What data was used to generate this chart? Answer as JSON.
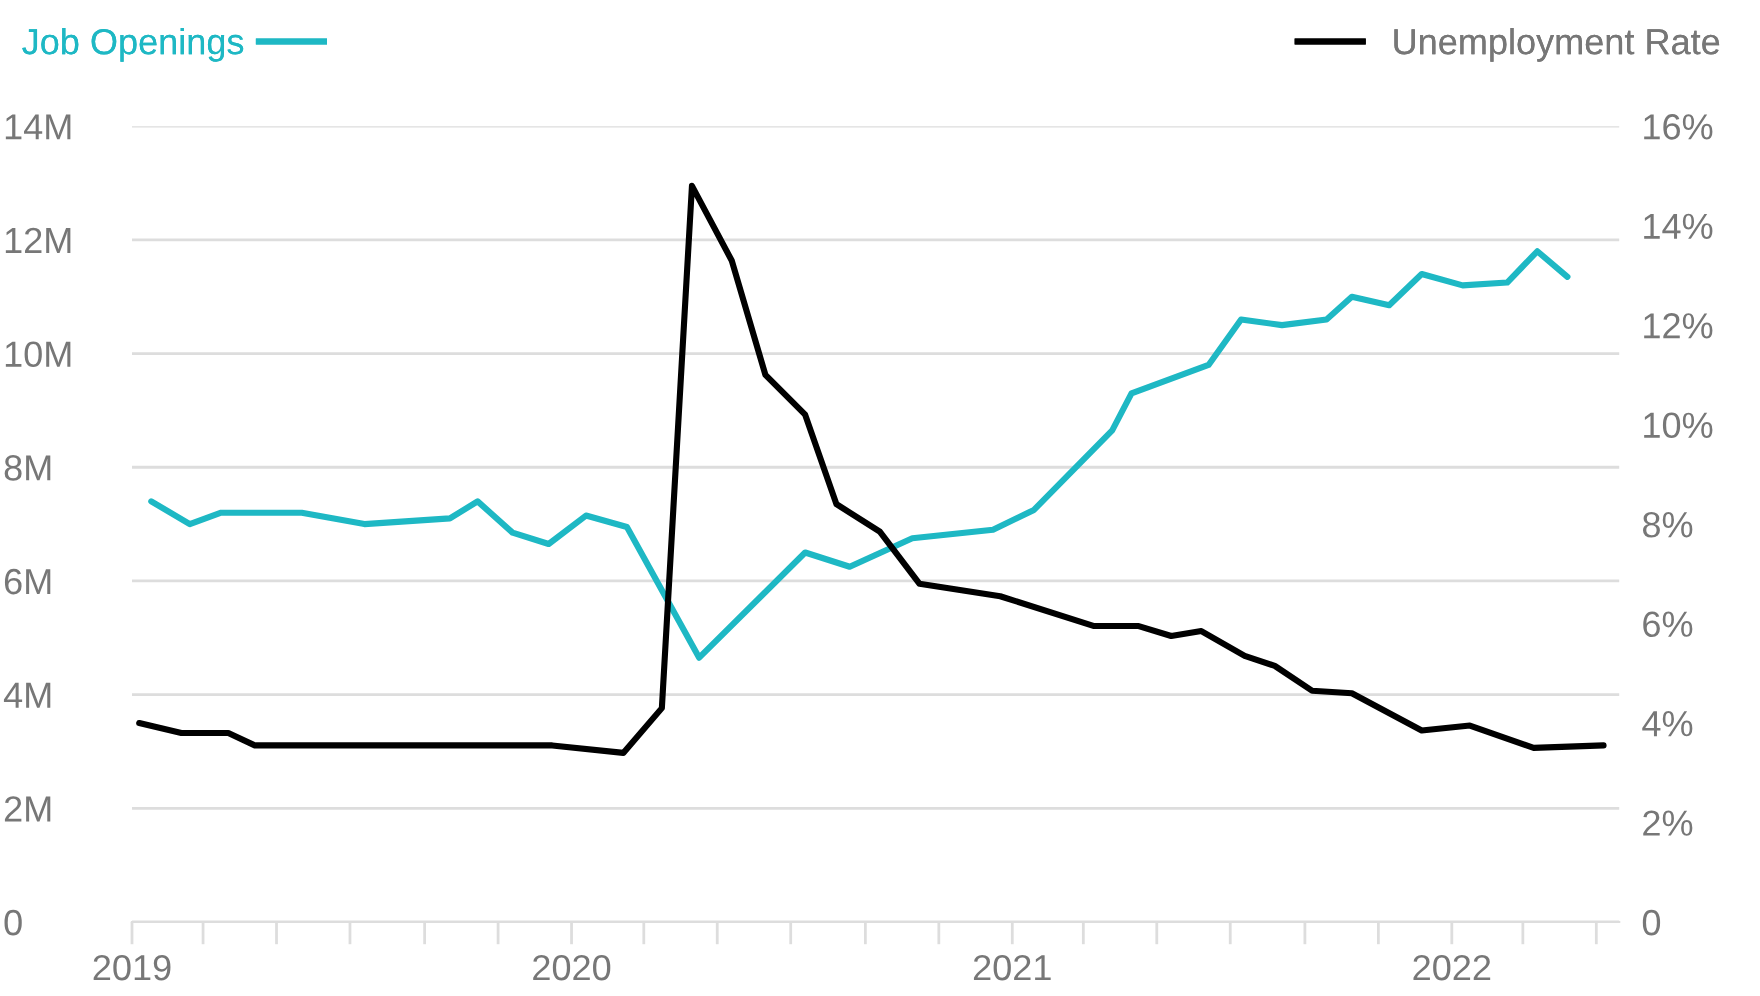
{
  "chart_data": {
    "type": "line",
    "legend": "top",
    "grid": "y",
    "marker": "none",
    "line_style": "solid",
    "xlim": [
      "2019-01-01",
      "2022-05-20"
    ],
    "xticks": [
      {
        "value": "2019-01-01",
        "label": "2019"
      },
      {
        "value": "2019-03-01",
        "label": null
      },
      {
        "value": "2019-05-01",
        "label": null
      },
      {
        "value": "2019-07-01",
        "label": null
      },
      {
        "value": "2019-09-01",
        "label": null
      },
      {
        "value": "2019-11-01",
        "label": null
      },
      {
        "value": "2020-01-01",
        "label": "2020"
      },
      {
        "value": "2020-03-01",
        "label": null
      },
      {
        "value": "2020-05-01",
        "label": null
      },
      {
        "value": "2020-07-01",
        "label": null
      },
      {
        "value": "2020-09-01",
        "label": null
      },
      {
        "value": "2020-11-01",
        "label": null
      },
      {
        "value": "2021-01-01",
        "label": "2021"
      },
      {
        "value": "2021-03-01",
        "label": null
      },
      {
        "value": "2021-05-01",
        "label": null
      },
      {
        "value": "2021-07-01",
        "label": null
      },
      {
        "value": "2021-09-01",
        "label": null
      },
      {
        "value": "2021-11-01",
        "label": null
      },
      {
        "value": "2022-01-01",
        "label": "2022"
      },
      {
        "value": "2022-03-01",
        "label": null
      },
      {
        "value": "2022-05-01",
        "label": null
      }
    ],
    "ylim": [
      0,
      14
    ],
    "yticks": [
      0,
      {
        "value": 2,
        "label": "2M"
      },
      {
        "value": 4,
        "label": "4M"
      },
      {
        "value": 6,
        "label": "6M"
      },
      {
        "value": 8,
        "label": "8M"
      },
      {
        "value": 10,
        "label": "10M"
      },
      {
        "value": 12,
        "label": "12M"
      },
      {
        "value": 14,
        "label": "14M"
      }
    ],
    "y2lim": [
      0,
      16
    ],
    "y2ticks": [
      0,
      {
        "value": 2,
        "label": "2%"
      },
      {
        "value": 4,
        "label": "4%"
      },
      {
        "value": 6,
        "label": "6%"
      },
      {
        "value": 8,
        "label": "8%"
      },
      {
        "value": 10,
        "label": "10%"
      },
      {
        "value": 12,
        "label": "12%"
      },
      {
        "value": 14,
        "label": "14%"
      },
      {
        "value": 16,
        "label": "16%"
      }
    ],
    "series": [
      {
        "name": "Job Openings",
        "color": "#1eb8c4",
        "x": [
          "2019-01-17",
          "2019-02-18",
          "2019-03-16",
          "2019-05-22",
          "2019-07-13",
          "2019-09-22",
          "2019-10-15",
          "2019-11-13",
          "2019-12-13",
          "2020-01-13",
          "2020-02-16",
          "2020-04-16",
          "2020-07-13",
          "2020-08-19",
          "2020-10-10",
          "2020-12-16",
          "2021-01-19",
          "2021-03-25",
          "2021-04-10",
          "2021-06-13",
          "2021-07-10",
          "2021-08-13",
          "2021-09-19",
          "2021-10-10",
          "2021-11-10",
          "2021-12-07",
          "2022-01-10",
          "2022-02-16",
          "2022-03-13",
          "2022-04-07"
        ],
        "values": [
          7.4,
          7.0,
          7.2,
          7.2,
          7.0,
          7.1,
          7.4,
          6.85,
          6.65,
          7.15,
          6.95,
          4.65,
          6.5,
          6.25,
          6.75,
          6.9,
          7.25,
          8.65,
          9.3,
          9.8,
          10.6,
          10.5,
          10.6,
          11.0,
          10.85,
          11.4,
          11.2,
          11.25,
          11.8,
          11.35
        ]
      },
      {
        "name": "Unemployment Rate",
        "color": "#000000",
        "axis": "y2",
        "x": [
          "2019-01-07",
          "2019-02-11",
          "2019-03-22",
          "2019-04-13",
          "2019-12-16",
          "2020-02-13",
          "2020-03-16",
          "2020-04-10",
          "2020-05-13",
          "2020-06-10",
          "2020-07-13",
          "2020-08-08",
          "2020-09-13",
          "2020-10-16",
          "2020-12-22",
          "2021-03-10",
          "2021-04-16",
          "2021-05-13",
          "2021-06-07",
          "2021-07-13",
          "2021-08-07",
          "2021-09-07",
          "2021-10-10",
          "2021-12-07",
          "2022-01-16",
          "2022-03-10",
          "2022-05-07"
        ],
        "values": [
          4.0,
          3.8,
          3.8,
          3.55,
          3.55,
          3.4,
          4.3,
          14.8,
          13.3,
          11.0,
          10.2,
          8.4,
          7.85,
          6.8,
          6.55,
          5.95,
          5.95,
          5.75,
          5.85,
          5.35,
          5.15,
          4.65,
          4.6,
          3.85,
          3.95,
          3.5,
          3.55
        ]
      }
    ]
  }
}
